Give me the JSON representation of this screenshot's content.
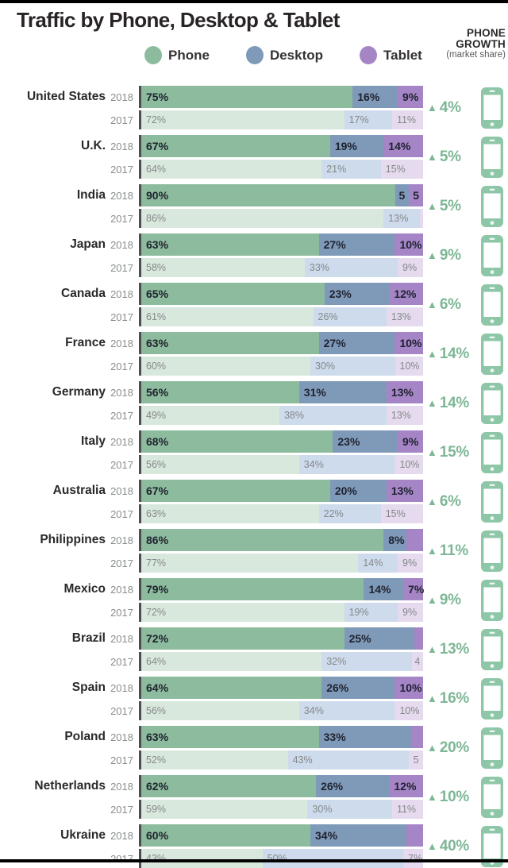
{
  "title": "Traffic by Phone, Desktop & Tablet",
  "legend": {
    "items": [
      {
        "label": "Phone",
        "color": "#8dbb9d"
      },
      {
        "label": "Desktop",
        "color": "#7f9ab8"
      },
      {
        "label": "Tablet",
        "color": "#a585c6"
      }
    ]
  },
  "growth_header": {
    "line1": "PHONE",
    "line2": "GROWTH",
    "sub": "(market share)"
  },
  "colors": {
    "phone_2018": "#8dbb9d",
    "desktop_2018": "#7f9ab8",
    "tablet_2018": "#a585c6",
    "phone_2017": "#d9e8dd",
    "desktop_2017": "#cddbec",
    "tablet_2017": "#e5daee",
    "axis_line": "#4e4e50",
    "growth_green": "#7eb795",
    "icon_green": "#8ec6a8",
    "label_2018": "#1f2230",
    "label_2017": "#85888a"
  },
  "up_triangle_icon": "▲",
  "chart_data": {
    "type": "bar",
    "orientation": "horizontal-stacked",
    "title": "Traffic by Phone, Desktop & Tablet",
    "unit": "% market share",
    "xlim": [
      0,
      100
    ],
    "series": [
      {
        "key": "phone",
        "name": "Phone",
        "color_2018": "#8dbb9d",
        "color_2017": "#d9e8dd"
      },
      {
        "key": "desktop",
        "name": "Desktop",
        "color_2018": "#7f9ab8",
        "color_2017": "#cddbec"
      },
      {
        "key": "tablet",
        "name": "Tablet",
        "color_2018": "#a585c6",
        "color_2017": "#e5daee"
      }
    ],
    "countries": [
      {
        "name": "United States",
        "growth": "4%",
        "rows": [
          {
            "year": "2018",
            "values": [
              75,
              16,
              9
            ],
            "labels": [
              "75%",
              "16%",
              "9%"
            ]
          },
          {
            "year": "2017",
            "values": [
              72,
              17,
              11
            ],
            "labels": [
              "72%",
              "17%",
              "11%"
            ]
          }
        ]
      },
      {
        "name": "U.K.",
        "growth": "5%",
        "rows": [
          {
            "year": "2018",
            "values": [
              67,
              19,
              14
            ],
            "labels": [
              "67%",
              "19%",
              "14%"
            ]
          },
          {
            "year": "2017",
            "values": [
              64,
              21,
              15
            ],
            "labels": [
              "64%",
              "21%",
              "15%"
            ]
          }
        ]
      },
      {
        "name": "India",
        "growth": "5%",
        "rows": [
          {
            "year": "2018",
            "values": [
              90,
              5,
              5
            ],
            "labels": [
              "90%",
              "5",
              "5"
            ]
          },
          {
            "year": "2017",
            "values": [
              86,
              13,
              1
            ],
            "labels": [
              "86%",
              "13%",
              ""
            ]
          }
        ]
      },
      {
        "name": "Japan",
        "growth": "9%",
        "rows": [
          {
            "year": "2018",
            "values": [
              63,
              27,
              10
            ],
            "labels": [
              "63%",
              "27%",
              "10%"
            ]
          },
          {
            "year": "2017",
            "values": [
              58,
              33,
              9
            ],
            "labels": [
              "58%",
              "33%",
              "9%"
            ]
          }
        ]
      },
      {
        "name": "Canada",
        "growth": "6%",
        "rows": [
          {
            "year": "2018",
            "values": [
              65,
              23,
              12
            ],
            "labels": [
              "65%",
              "23%",
              "12%"
            ]
          },
          {
            "year": "2017",
            "values": [
              61,
              26,
              13
            ],
            "labels": [
              "61%",
              "26%",
              "13%"
            ]
          }
        ]
      },
      {
        "name": "France",
        "growth": "14%",
        "rows": [
          {
            "year": "2018",
            "values": [
              63,
              27,
              10
            ],
            "labels": [
              "63%",
              "27%",
              "10%"
            ]
          },
          {
            "year": "2017",
            "values": [
              60,
              30,
              10
            ],
            "labels": [
              "60%",
              "30%",
              "10%"
            ]
          }
        ]
      },
      {
        "name": "Germany",
        "growth": "14%",
        "rows": [
          {
            "year": "2018",
            "values": [
              56,
              31,
              13
            ],
            "labels": [
              "56%",
              "31%",
              "13%"
            ]
          },
          {
            "year": "2017",
            "values": [
              49,
              38,
              13
            ],
            "labels": [
              "49%",
              "38%",
              "13%"
            ]
          }
        ]
      },
      {
        "name": "Italy",
        "growth": "15%",
        "rows": [
          {
            "year": "2018",
            "values": [
              68,
              23,
              9
            ],
            "labels": [
              "68%",
              "23%",
              "9%"
            ]
          },
          {
            "year": "2017",
            "values": [
              56,
              34,
              10
            ],
            "labels": [
              "56%",
              "34%",
              "10%"
            ]
          }
        ]
      },
      {
        "name": "Australia",
        "growth": "6%",
        "rows": [
          {
            "year": "2018",
            "values": [
              67,
              20,
              13
            ],
            "labels": [
              "67%",
              "20%",
              "13%"
            ]
          },
          {
            "year": "2017",
            "values": [
              63,
              22,
              15
            ],
            "labels": [
              "63%",
              "22%",
              "15%"
            ]
          }
        ]
      },
      {
        "name": "Philippines",
        "growth": "11%",
        "rows": [
          {
            "year": "2018",
            "values": [
              86,
              8,
              6
            ],
            "labels": [
              "86%",
              "8%",
              ""
            ]
          },
          {
            "year": "2017",
            "values": [
              77,
              14,
              9
            ],
            "labels": [
              "77%",
              "14%",
              "9%"
            ]
          }
        ]
      },
      {
        "name": "Mexico",
        "growth": "9%",
        "rows": [
          {
            "year": "2018",
            "values": [
              79,
              14,
              7
            ],
            "labels": [
              "79%",
              "14%",
              "7%"
            ]
          },
          {
            "year": "2017",
            "values": [
              72,
              19,
              9
            ],
            "labels": [
              "72%",
              "19%",
              "9%"
            ]
          }
        ]
      },
      {
        "name": "Brazil",
        "growth": "13%",
        "rows": [
          {
            "year": "2018",
            "values": [
              72,
              25,
              3
            ],
            "labels": [
              "72%",
              "25%",
              ""
            ]
          },
          {
            "year": "2017",
            "values": [
              64,
              32,
              4
            ],
            "labels": [
              "64%",
              "32%",
              "4"
            ]
          }
        ]
      },
      {
        "name": "Spain",
        "growth": "16%",
        "rows": [
          {
            "year": "2018",
            "values": [
              64,
              26,
              10
            ],
            "labels": [
              "64%",
              "26%",
              "10%"
            ]
          },
          {
            "year": "2017",
            "values": [
              56,
              34,
              10
            ],
            "labels": [
              "56%",
              "34%",
              "10%"
            ]
          }
        ]
      },
      {
        "name": "Poland",
        "growth": "20%",
        "rows": [
          {
            "year": "2018",
            "values": [
              63,
              33,
              4
            ],
            "labels": [
              "63%",
              "33%",
              ""
            ]
          },
          {
            "year": "2017",
            "values": [
              52,
              43,
              5
            ],
            "labels": [
              "52%",
              "43%",
              "5"
            ]
          }
        ]
      },
      {
        "name": "Netherlands",
        "growth": "10%",
        "rows": [
          {
            "year": "2018",
            "values": [
              62,
              26,
              12
            ],
            "labels": [
              "62%",
              "26%",
              "12%"
            ]
          },
          {
            "year": "2017",
            "values": [
              59,
              30,
              11
            ],
            "labels": [
              "59%",
              "30%",
              "11%"
            ]
          }
        ]
      },
      {
        "name": "Ukraine",
        "growth": "40%",
        "rows": [
          {
            "year": "2018",
            "values": [
              60,
              34,
              6
            ],
            "labels": [
              "60%",
              "34%",
              ""
            ]
          },
          {
            "year": "2017",
            "values": [
              43,
              50,
              7
            ],
            "labels": [
              "43%",
              "50%",
              "7%"
            ]
          }
        ]
      }
    ]
  }
}
